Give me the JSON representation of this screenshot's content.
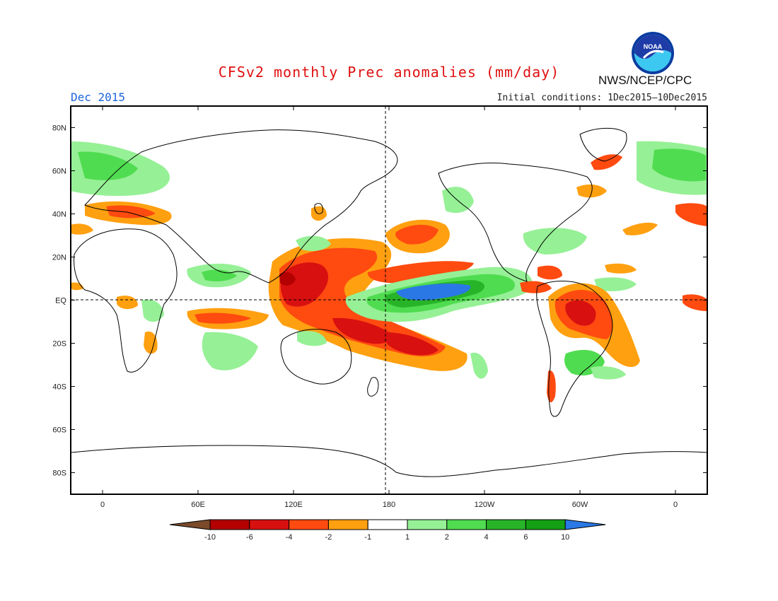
{
  "header": {
    "title": "CFSv2 monthly Prec anomalies (mm/day)",
    "month": "Dec 2015",
    "initial_conditions": "Initial conditions: 1Dec2015—10Dec2015",
    "agency": "NWS/NCEP/CPC",
    "logo_text": "NOAA"
  },
  "map": {
    "projection": "equirectangular",
    "lon_range": [
      -20,
      380
    ],
    "lat_range": [
      -90,
      90
    ],
    "lat_ticks": [
      {
        "lat": 80,
        "label": "80N"
      },
      {
        "lat": 60,
        "label": "60N"
      },
      {
        "lat": 40,
        "label": "40N"
      },
      {
        "lat": 20,
        "label": "20N"
      },
      {
        "lat": 0,
        "label": "EQ"
      },
      {
        "lat": -20,
        "label": "20S"
      },
      {
        "lat": -40,
        "label": "40S"
      },
      {
        "lat": -60,
        "label": "60S"
      },
      {
        "lat": -80,
        "label": "80S"
      }
    ],
    "lon_ticks": [
      {
        "lon": 0,
        "label": "0"
      },
      {
        "lon": 60,
        "label": "60E"
      },
      {
        "lon": 120,
        "label": "120E"
      },
      {
        "lon": 180,
        "label": "180"
      },
      {
        "lon": 240,
        "label": "120W"
      },
      {
        "lon": 300,
        "label": "60W"
      },
      {
        "lon": 360,
        "label": "0"
      }
    ],
    "reference_lines": [
      "equator",
      "dateline"
    ]
  },
  "colorbar": {
    "labels": [
      "-10",
      "-6",
      "-4",
      "-2",
      "-1",
      "1",
      "2",
      "4",
      "6",
      "10"
    ],
    "colors": [
      "#7a4a2a",
      "#b40000",
      "#d81010",
      "#ff4a10",
      "#ffa010",
      "#ffffff",
      "#96f096",
      "#50dc50",
      "#28b428",
      "#14a014",
      "#2a78e6"
    ]
  },
  "anomalies": [
    {
      "region": "central-pacific-wet",
      "sign": "positive",
      "color": "#2a78e6"
    },
    {
      "region": "equatorial-pacific-wet",
      "sign": "positive",
      "color": "#50dc50"
    },
    {
      "region": "western-pacific-dry",
      "sign": "negative",
      "color": "#d81010"
    },
    {
      "region": "south-pacific-dry",
      "sign": "negative",
      "color": "#ff4a10"
    },
    {
      "region": "north-pacific-dry",
      "sign": "negative",
      "color": "#ff4a10"
    },
    {
      "region": "northern-south-america-dry",
      "sign": "negative",
      "color": "#d81010"
    },
    {
      "region": "southern-brazil-wet",
      "sign": "positive",
      "color": "#28b428"
    },
    {
      "region": "northern-europe-wet",
      "sign": "positive",
      "color": "#50dc50"
    }
  ]
}
